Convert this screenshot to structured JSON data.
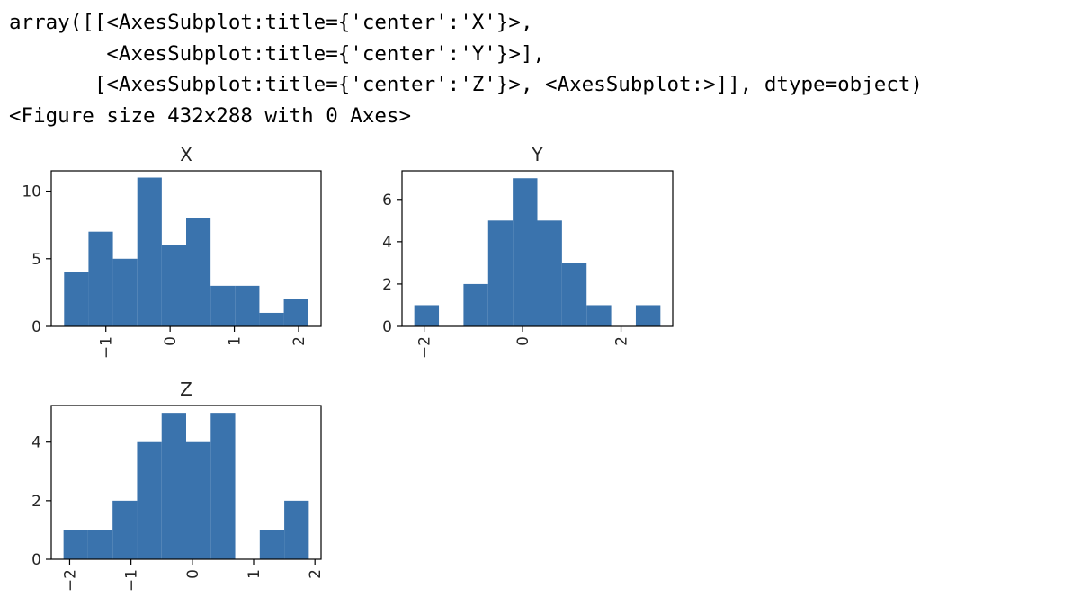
{
  "output": {
    "lines": [
      "array([[<AxesSubplot:title={'center':'X'}>,",
      "        <AxesSubplot:title={'center':'Y'}>],",
      "       [<AxesSubplot:title={'center':'Z'}>, <AxesSubplot:>]], dtype=object)",
      "<Figure size 432x288 with 0 Axes>"
    ]
  },
  "colors": {
    "bar": "#3a73ad",
    "axis": "#000000",
    "text": "#262626"
  },
  "chart_data": [
    {
      "type": "bar",
      "title": "X",
      "bin_edges": [
        -1.65,
        -1.27,
        -0.89,
        -0.51,
        -0.13,
        0.25,
        0.63,
        1.01,
        1.39,
        1.77,
        2.15
      ],
      "values": [
        4,
        7,
        5,
        11,
        6,
        8,
        3,
        3,
        1,
        2
      ],
      "xlim": [
        -1.85,
        2.35
      ],
      "ylim": [
        0,
        11.5
      ],
      "xticks": [
        -1,
        0,
        1,
        2
      ],
      "xtick_labels": [
        "−1",
        "0",
        "1",
        "2"
      ],
      "yticks": [
        0,
        5,
        10
      ],
      "ytick_labels": [
        "0",
        "5",
        "10"
      ],
      "grid": false
    },
    {
      "type": "bar",
      "title": "Y",
      "bin_edges": [
        -2.2,
        -1.7,
        -1.2,
        -0.7,
        -0.2,
        0.3,
        0.8,
        1.3,
        1.8,
        2.3,
        2.8
      ],
      "values": [
        1,
        0,
        2,
        5,
        7,
        5,
        3,
        1,
        0,
        1
      ],
      "xlim": [
        -2.45,
        3.05
      ],
      "ylim": [
        0,
        7.35
      ],
      "xticks": [
        -2,
        0,
        2
      ],
      "xtick_labels": [
        "−2",
        "0",
        "2"
      ],
      "yticks": [
        0,
        2,
        4,
        6
      ],
      "ytick_labels": [
        "0",
        "2",
        "4",
        "6"
      ],
      "grid": false
    },
    {
      "type": "bar",
      "title": "Z",
      "bin_edges": [
        -2.1,
        -1.7,
        -1.3,
        -0.9,
        -0.5,
        -0.1,
        0.3,
        0.7,
        1.1,
        1.5,
        1.9
      ],
      "values": [
        1,
        1,
        2,
        4,
        5,
        4,
        5,
        0,
        1,
        2
      ],
      "xlim": [
        -2.3,
        2.1
      ],
      "ylim": [
        0,
        5.25
      ],
      "xticks": [
        -2,
        -1,
        0,
        1,
        2
      ],
      "xtick_labels": [
        "−2",
        "−1",
        "0",
        "1",
        "2"
      ],
      "yticks": [
        0,
        2,
        4
      ],
      "ytick_labels": [
        "0",
        "2",
        "4"
      ],
      "grid": false
    }
  ]
}
